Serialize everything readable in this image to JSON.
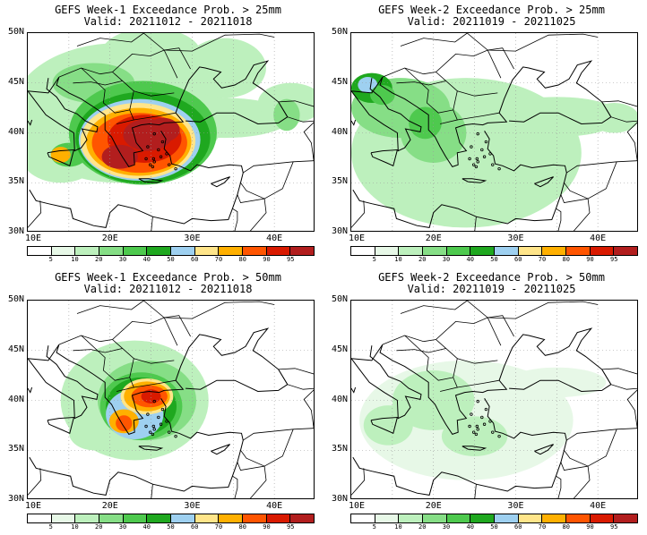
{
  "colors": {
    "bins": [
      "#ffffff",
      "#e7f8e7",
      "#bdf0bd",
      "#86de86",
      "#4ec94e",
      "#1fa81f",
      "#9ed0f0",
      "#ffe58a",
      "#ffb000",
      "#ff5500",
      "#d91a00",
      "#b21e1e"
    ],
    "coast": "#000000",
    "grid": "#9a9a9a"
  },
  "colorbar": {
    "labels": [
      "5",
      "10",
      "20",
      "30",
      "40",
      "50",
      "60",
      "70",
      "80",
      "90",
      "95"
    ]
  },
  "axes": {
    "lat_ticks": [
      "50N",
      "45N",
      "40N",
      "35N",
      "30N"
    ],
    "lon_ticks": [
      "10E",
      "20E",
      "30E",
      "40E"
    ]
  },
  "panels": [
    {
      "title": "GEFS Week-1 Exceedance Prob. > 25mm",
      "valid": "Valid: 20211012 - 20211018"
    },
    {
      "title": "GEFS Week-2 Exceedance Prob. > 25mm",
      "valid": "Valid: 20211019 - 20211025"
    },
    {
      "title": "GEFS Week-1 Exceedance Prob. > 50mm",
      "valid": "Valid: 20211012 - 20211018"
    },
    {
      "title": "GEFS Week-2 Exceedance Prob. > 50mm",
      "valid": "Valid: 20211019 - 20211025"
    }
  ]
}
